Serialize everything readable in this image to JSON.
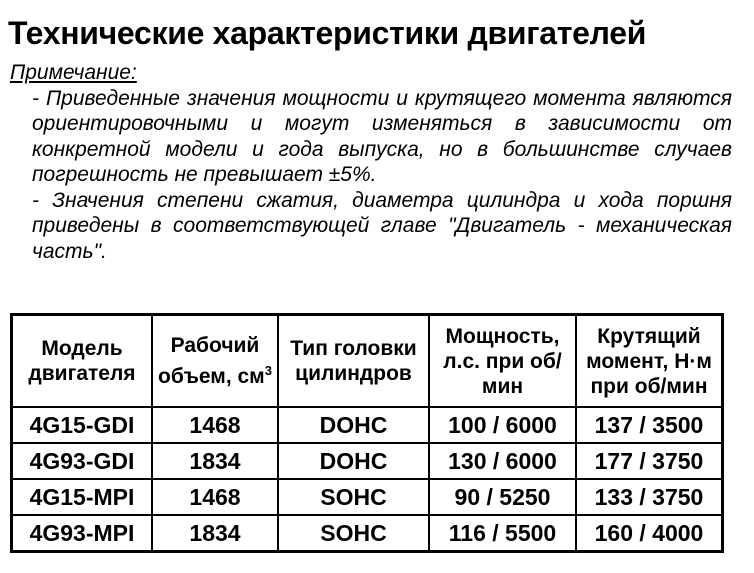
{
  "title": "Технические характеристики двигателей",
  "note": {
    "label": "Примечание:",
    "items": [
      "- Приведенные значения мощности и крутящего момента являются ориентировочными и могут изменяться в зависимости от конкретной модели и года выпуска, но в большинстве случаев погрешность не превышает ±5%.",
      "- Значения степени сжатия, диаметра цилиндра и хода поршня приведены в соответствующей главе \"Двигатель - механическая часть\"."
    ]
  },
  "table": {
    "headers": [
      "Модель двигателя",
      "Рабочий объем, см",
      "Тип головки цилиндров",
      "Мощность, л.с. при об/мин",
      "Крутящий момент, Н·м при об/мин"
    ],
    "volume_unit_superscript": "3",
    "rows": [
      [
        "4G15-GDI",
        "1468",
        "DOHC",
        "100 / 6000",
        "137 / 3500"
      ],
      [
        "4G93-GDI",
        "1834",
        "DOHC",
        "130 / 6000",
        "177 / 3750"
      ],
      [
        "4G15-MPI",
        "1468",
        "SOHC",
        "90 / 5250",
        "133 / 3750"
      ],
      [
        "4G93-MPI",
        "1834",
        "SOHC",
        "116 / 5500",
        "160 / 4000"
      ]
    ]
  }
}
